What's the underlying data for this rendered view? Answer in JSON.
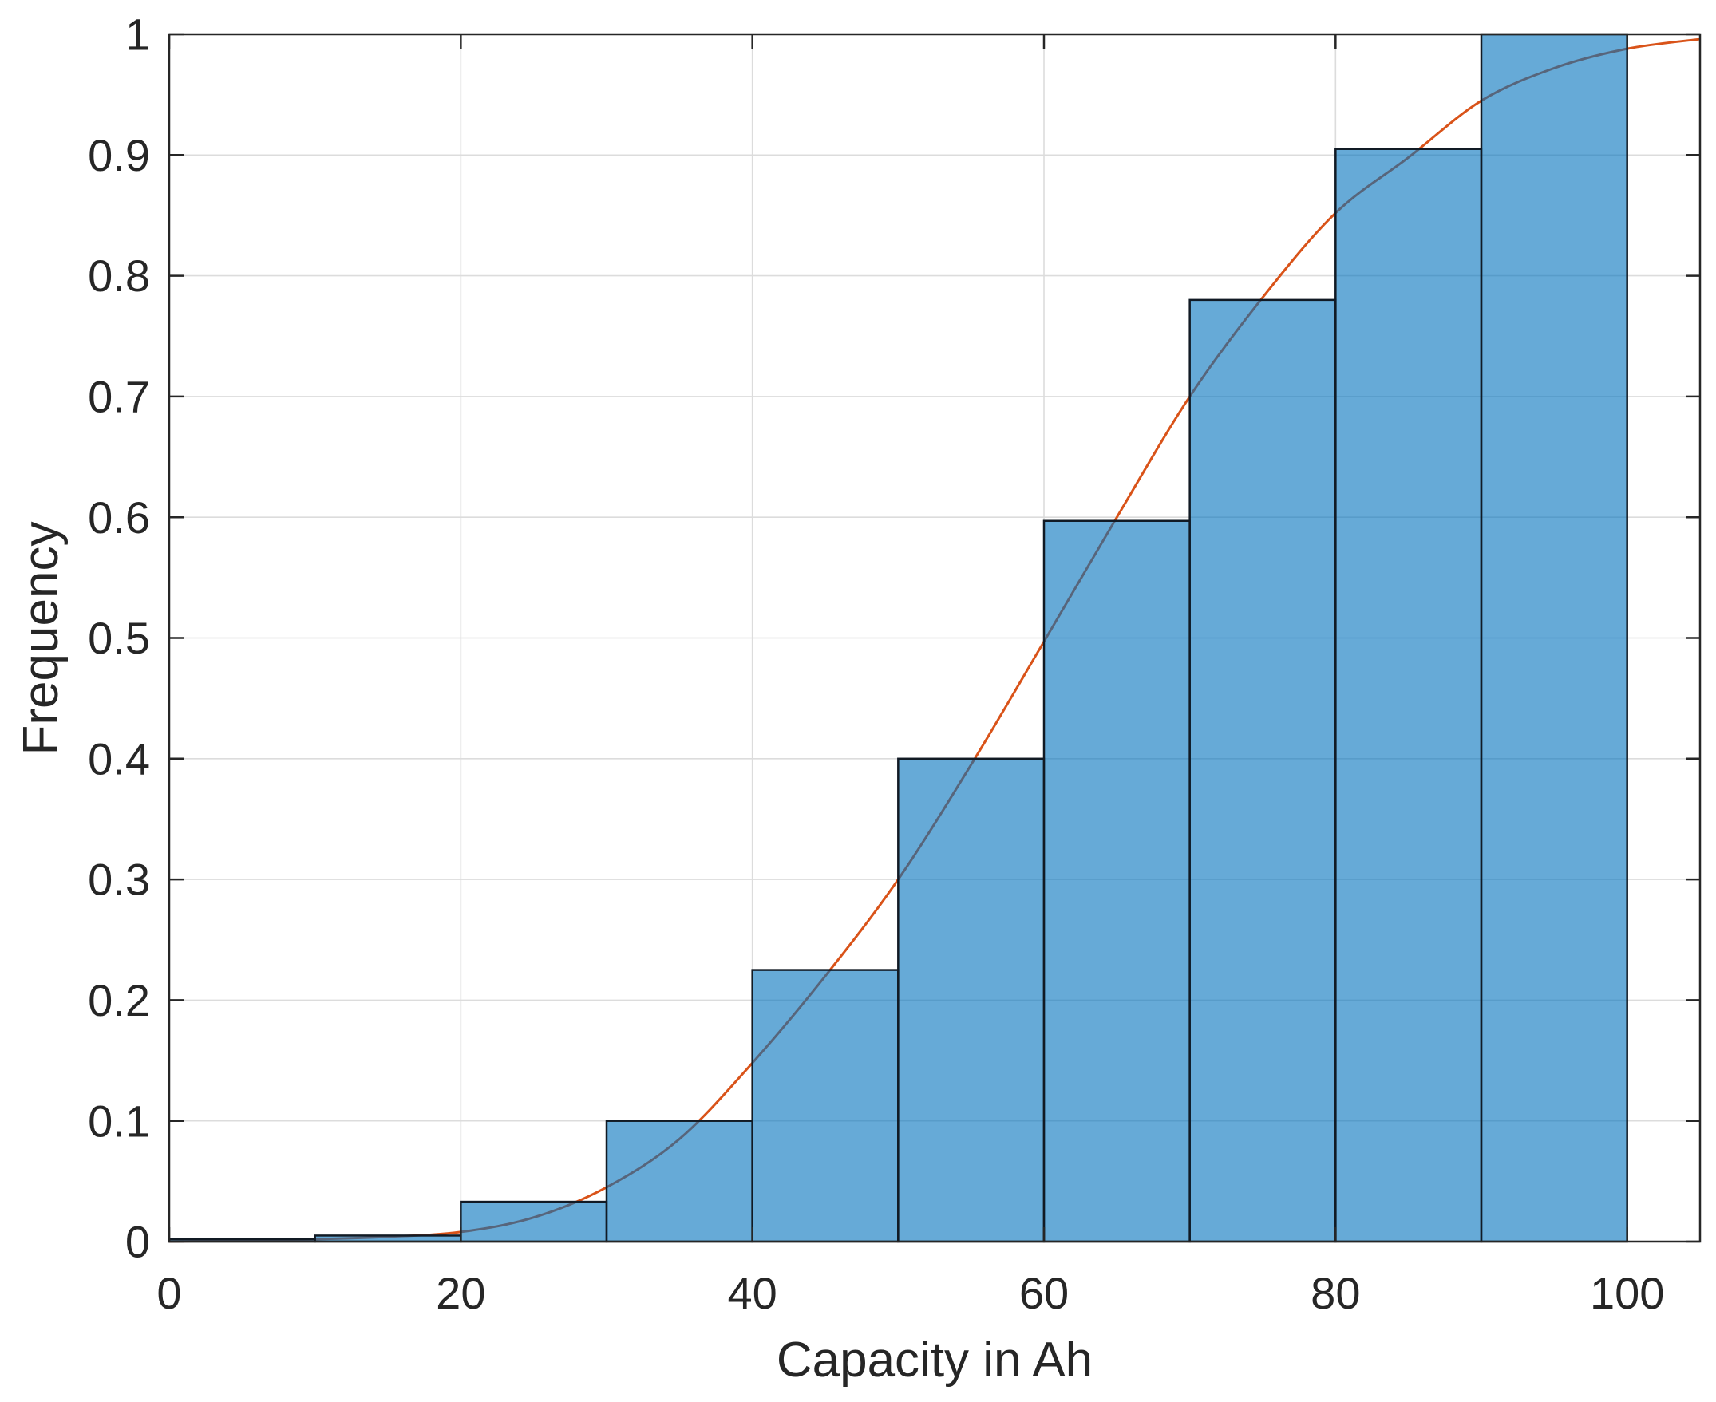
{
  "figure": {
    "background": "#ffffff"
  },
  "chart_data": {
    "type": "bar",
    "subtype": "cumulative-histogram-with-fit-curve",
    "title": "",
    "xlabel": "Capacity in Ah",
    "ylabel": "Frequency",
    "xlim": [
      0,
      105
    ],
    "ylim": [
      0,
      1
    ],
    "grid": true,
    "legend_position": "none",
    "x_tick_values": [
      0,
      20,
      40,
      60,
      80,
      100
    ],
    "x_tick_labels": [
      "0",
      "20",
      "40",
      "60",
      "80",
      "100"
    ],
    "y_tick_values": [
      0,
      0.1,
      0.2,
      0.3,
      0.4,
      0.5,
      0.6,
      0.7,
      0.8,
      0.9,
      1
    ],
    "y_tick_labels": [
      "0",
      "0.1",
      "0.2",
      "0.3",
      "0.4",
      "0.5",
      "0.6",
      "0.7",
      "0.8",
      "0.9",
      "1"
    ],
    "bars": {
      "normalization": "cdf",
      "bin_edges": [
        0,
        10,
        20,
        30,
        40,
        50,
        60,
        70,
        80,
        90,
        100
      ],
      "values": [
        0.002,
        0.005,
        0.033,
        0.1,
        0.225,
        0.4,
        0.597,
        0.78,
        0.905,
        1.0
      ]
    },
    "fit_curve": {
      "name": "fitted-cdf-curve",
      "x": [
        0,
        5,
        10,
        15,
        20,
        25,
        30,
        35,
        40,
        45,
        50,
        55,
        60,
        65,
        70,
        75,
        80,
        85,
        90,
        95,
        100,
        105
      ],
      "y": [
        0,
        0.001,
        0.002,
        0.004,
        0.008,
        0.02,
        0.045,
        0.085,
        0.148,
        0.22,
        0.3,
        0.395,
        0.497,
        0.6,
        0.7,
        0.782,
        0.852,
        0.898,
        0.945,
        0.972,
        0.988,
        0.996
      ]
    },
    "colors": {
      "bar_fill": "#0072BD",
      "bar_fill_opacity": 0.6,
      "bar_edge": "#111a24",
      "curve": "#D95319",
      "grid": "#dcdcdc",
      "axis": "#262626",
      "text": "#262626"
    }
  }
}
